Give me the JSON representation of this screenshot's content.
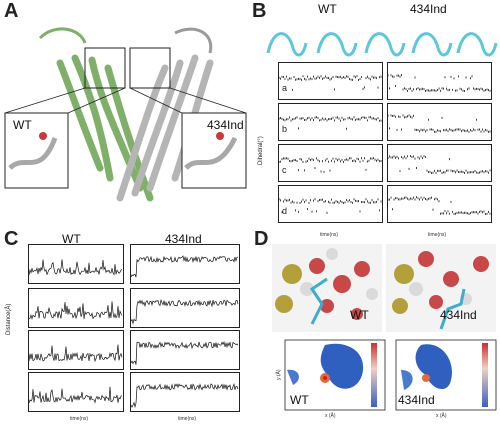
{
  "panels": {
    "a": {
      "letter": "A",
      "wt_label": "WT",
      "mut_label": "434Ind"
    },
    "b": {
      "letter": "B",
      "wt_label": "WT",
      "mut_label": "434Ind",
      "ylabel": "Dihedral(°)",
      "xlabel": "time(ns)",
      "subplots": [
        "a",
        "b",
        "c",
        "d"
      ],
      "yticks": [
        "150",
        "100",
        "50",
        "0",
        "-50",
        "-100",
        "-150"
      ],
      "xticks_wt": [
        "0",
        "100",
        "200",
        "300",
        "400",
        "500"
      ],
      "xticks_mut": [
        "0",
        "100",
        "200",
        "300",
        "400",
        "500"
      ]
    },
    "c": {
      "letter": "C",
      "wt_label": "WT",
      "mut_label": "434Ind",
      "ylabel": "Distance(Å)",
      "xlabel": "time(ns)",
      "yticks": [
        "12",
        "10",
        "8",
        "6",
        "4",
        "2"
      ],
      "xticks_wt": [
        "0",
        "100",
        "200",
        "300",
        "400",
        "500"
      ],
      "xticks_mut": [
        "0",
        "100",
        "200",
        "300",
        "400",
        "500"
      ]
    },
    "d": {
      "letter": "D",
      "wt_label": "WT",
      "mut_label": "434Ind",
      "xlabel": "x (Å)",
      "ylabel": "y (Å)",
      "colorbar_wt": [
        "1.37",
        "1.33",
        "1.28",
        "1.24",
        "1.19",
        "1.14",
        "1.09",
        "1.05",
        "1.00"
      ],
      "colorbar_mut": [
        "1.010",
        "1.008",
        "1.006",
        "1.004",
        "1.002",
        "1.000",
        "0.998",
        "0.996",
        "0.994"
      ]
    }
  },
  "colors": {
    "helix_green": "#8fbf7a",
    "helix_grey": "#bfbfbf",
    "cyan": "#5cc7d9",
    "heat_blue": "#2f5fbf"
  }
}
